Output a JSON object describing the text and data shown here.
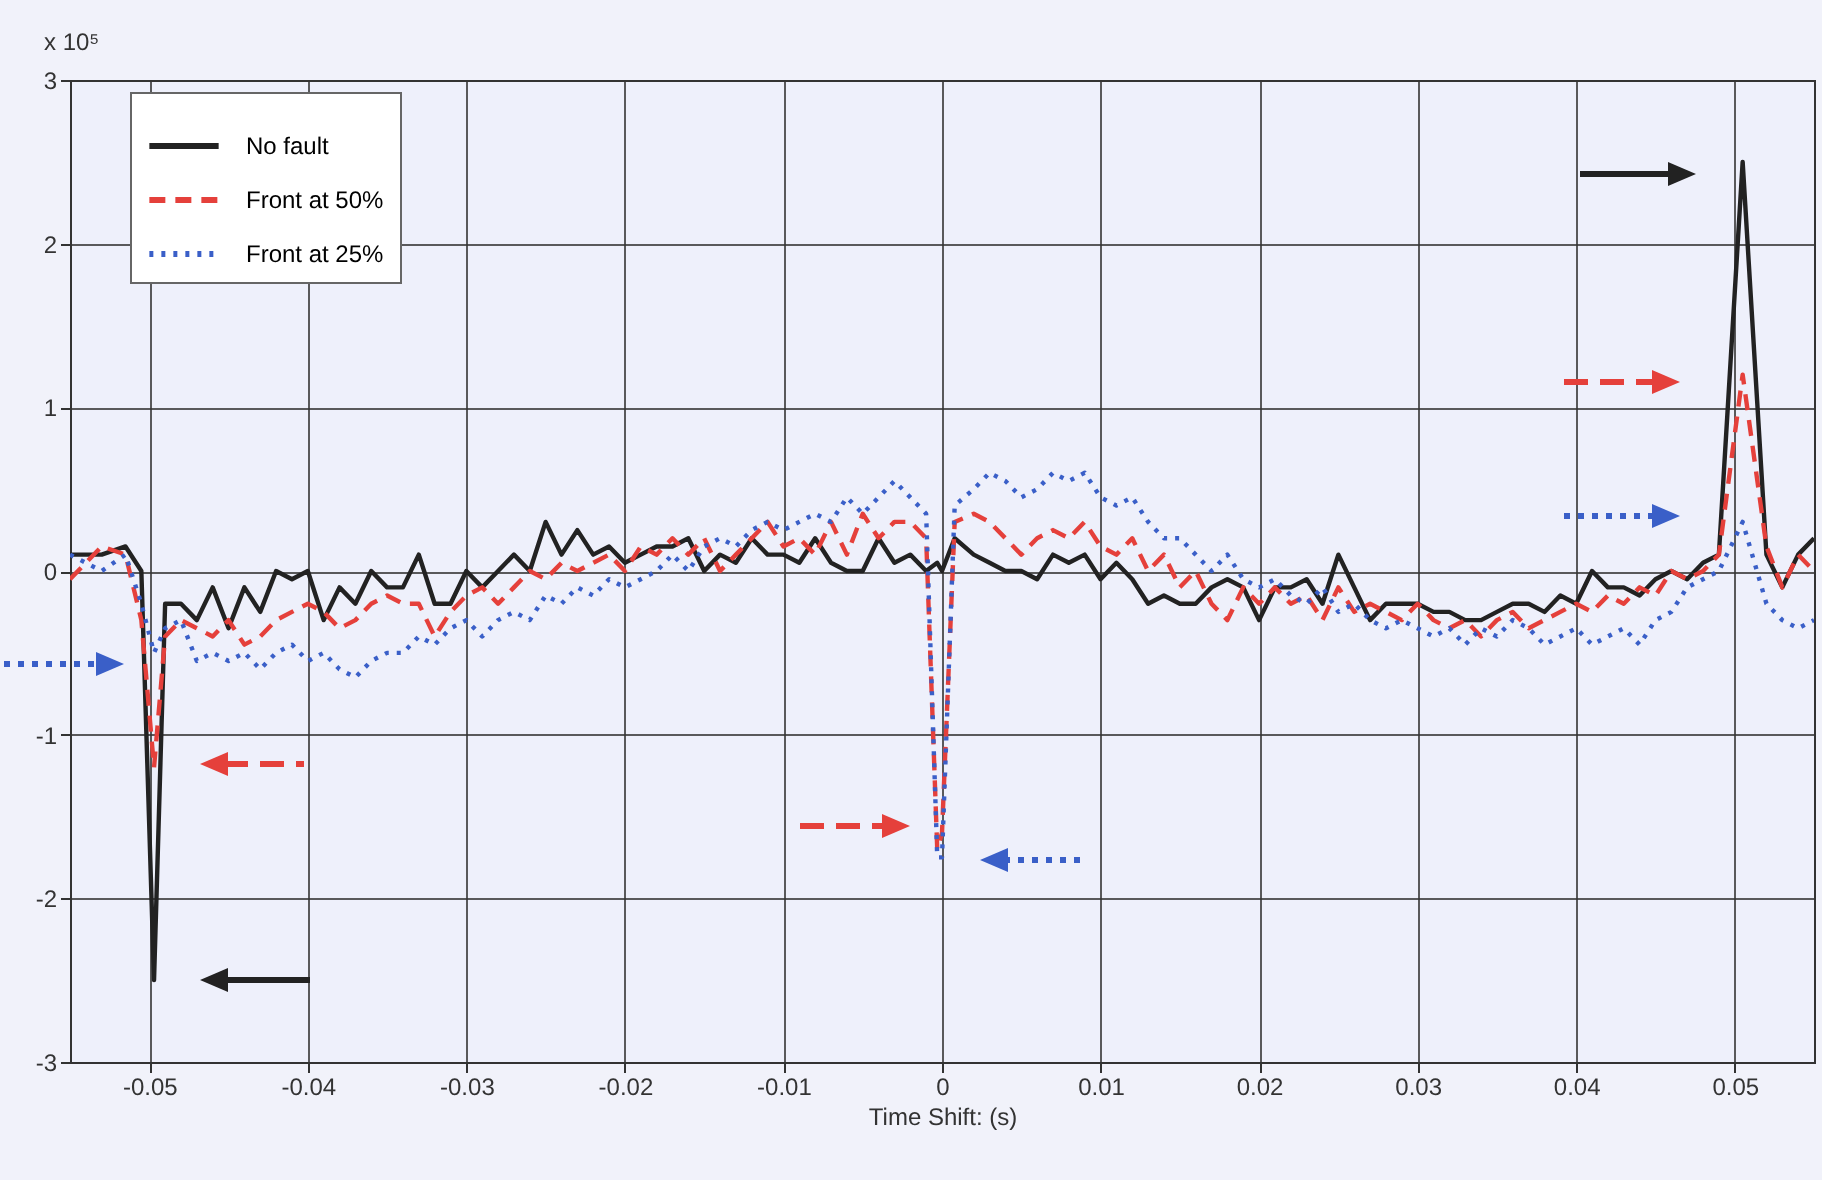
{
  "chart_data": {
    "type": "line",
    "xlabel": "Time Shift: (s)",
    "annotations": [
      "x 10⁵"
    ],
    "x": [
      -0.055,
      -0.053,
      -0.0515,
      -0.0505,
      -0.0497,
      -0.049,
      -0.048,
      -0.047,
      -0.046,
      -0.045,
      -0.044,
      -0.043,
      -0.042,
      -0.041,
      -0.04,
      -0.039,
      -0.038,
      -0.037,
      -0.036,
      -0.035,
      -0.034,
      -0.033,
      -0.032,
      -0.031,
      -0.03,
      -0.029,
      -0.028,
      -0.027,
      -0.026,
      -0.025,
      -0.024,
      -0.023,
      -0.022,
      -0.021,
      -0.02,
      -0.019,
      -0.018,
      -0.017,
      -0.016,
      -0.015,
      -0.014,
      -0.013,
      -0.012,
      -0.011,
      -0.01,
      -0.009,
      -0.008,
      -0.007,
      -0.006,
      -0.005,
      -0.004,
      -0.003,
      -0.002,
      -0.001,
      -0.0003,
      0,
      0.0008,
      0.002,
      0.003,
      0.004,
      0.005,
      0.006,
      0.007,
      0.008,
      0.009,
      0.01,
      0.011,
      0.012,
      0.013,
      0.014,
      0.015,
      0.016,
      0.017,
      0.018,
      0.019,
      0.02,
      0.021,
      0.022,
      0.023,
      0.024,
      0.025,
      0.026,
      0.027,
      0.028,
      0.029,
      0.03,
      0.031,
      0.032,
      0.033,
      0.034,
      0.035,
      0.036,
      0.037,
      0.038,
      0.039,
      0.04,
      0.041,
      0.042,
      0.043,
      0.044,
      0.045,
      0.046,
      0.047,
      0.048,
      0.049,
      0.0505,
      0.052,
      0.053,
      0.054,
      0.055
    ],
    "series": [
      {
        "name": "No fault",
        "color": "#222222",
        "line_style": "solid",
        "values": [
          0.1,
          0.1,
          0.15,
          0.0,
          -2.5,
          -0.2,
          -0.2,
          -0.3,
          -0.1,
          -0.35,
          -0.1,
          -0.25,
          0.0,
          -0.05,
          0.0,
          -0.3,
          -0.1,
          -0.2,
          0.0,
          -0.1,
          -0.1,
          0.1,
          -0.2,
          -0.2,
          0.0,
          -0.1,
          0.0,
          0.1,
          0.0,
          0.3,
          0.1,
          0.25,
          0.1,
          0.15,
          0.05,
          0.1,
          0.15,
          0.15,
          0.2,
          0.0,
          0.1,
          0.05,
          0.2,
          0.1,
          0.1,
          0.05,
          0.2,
          0.05,
          0.0,
          0.0,
          0.2,
          0.05,
          0.1,
          0.0,
          0.05,
          0.0,
          0.2,
          0.1,
          0.05,
          0.0,
          0.0,
          -0.05,
          0.1,
          0.05,
          0.1,
          -0.05,
          0.05,
          -0.05,
          -0.2,
          -0.15,
          -0.2,
          -0.2,
          -0.1,
          -0.05,
          -0.1,
          -0.3,
          -0.1,
          -0.1,
          -0.05,
          -0.2,
          0.1,
          -0.1,
          -0.3,
          -0.2,
          -0.2,
          -0.2,
          -0.25,
          -0.25,
          -0.3,
          -0.3,
          -0.25,
          -0.2,
          -0.2,
          -0.25,
          -0.15,
          -0.2,
          0.0,
          -0.1,
          -0.1,
          -0.15,
          -0.05,
          0.0,
          -0.05,
          0.05,
          0.1,
          2.5,
          0.1,
          -0.1,
          0.1,
          0.2
        ]
      },
      {
        "name": "Front at 50%",
        "color": "#e5403b",
        "line_style": "dashed",
        "values": [
          -0.05,
          0.15,
          0.1,
          -0.3,
          -1.2,
          -0.4,
          -0.3,
          -0.35,
          -0.4,
          -0.3,
          -0.45,
          -0.4,
          -0.3,
          -0.25,
          -0.2,
          -0.25,
          -0.35,
          -0.3,
          -0.2,
          -0.15,
          -0.2,
          -0.2,
          -0.4,
          -0.25,
          -0.15,
          -0.1,
          -0.2,
          -0.1,
          0.0,
          -0.05,
          0.05,
          0.0,
          0.05,
          0.1,
          0.0,
          0.15,
          0.1,
          0.2,
          0.1,
          0.2,
          0.0,
          0.1,
          0.2,
          0.3,
          0.15,
          0.2,
          0.1,
          0.3,
          0.1,
          0.35,
          0.2,
          0.3,
          0.3,
          0.2,
          -1.7,
          -1.6,
          0.3,
          0.35,
          0.3,
          0.2,
          0.1,
          0.2,
          0.25,
          0.2,
          0.3,
          0.15,
          0.1,
          0.2,
          0.0,
          0.1,
          -0.1,
          0.0,
          -0.2,
          -0.3,
          -0.1,
          -0.2,
          -0.1,
          -0.2,
          -0.15,
          -0.3,
          -0.1,
          -0.25,
          -0.2,
          -0.25,
          -0.3,
          -0.2,
          -0.3,
          -0.35,
          -0.3,
          -0.4,
          -0.3,
          -0.25,
          -0.35,
          -0.3,
          -0.25,
          -0.2,
          -0.25,
          -0.15,
          -0.2,
          -0.1,
          -0.15,
          0.0,
          -0.05,
          0.0,
          0.1,
          1.2,
          0.15,
          -0.1,
          0.1,
          0.0
        ]
      },
      {
        "name": "Front at 25%",
        "color": "#3a5fc8",
        "line_style": "dotted",
        "values": [
          0.1,
          0.0,
          0.1,
          -0.2,
          -0.5,
          -0.35,
          -0.3,
          -0.55,
          -0.5,
          -0.55,
          -0.5,
          -0.6,
          -0.5,
          -0.45,
          -0.55,
          -0.5,
          -0.6,
          -0.65,
          -0.55,
          -0.5,
          -0.5,
          -0.4,
          -0.45,
          -0.35,
          -0.3,
          -0.4,
          -0.3,
          -0.25,
          -0.3,
          -0.15,
          -0.2,
          -0.1,
          -0.15,
          -0.05,
          -0.1,
          -0.05,
          0.0,
          0.1,
          0.0,
          0.15,
          0.2,
          0.15,
          0.25,
          0.3,
          0.25,
          0.3,
          0.35,
          0.3,
          0.45,
          0.35,
          0.45,
          0.55,
          0.45,
          0.35,
          -1.75,
          -1.75,
          0.4,
          0.5,
          0.6,
          0.55,
          0.45,
          0.5,
          0.6,
          0.55,
          0.6,
          0.45,
          0.4,
          0.45,
          0.3,
          0.2,
          0.2,
          0.1,
          0.0,
          0.1,
          -0.05,
          -0.1,
          -0.05,
          -0.15,
          -0.2,
          -0.1,
          -0.25,
          -0.2,
          -0.3,
          -0.35,
          -0.3,
          -0.35,
          -0.4,
          -0.35,
          -0.45,
          -0.35,
          -0.4,
          -0.3,
          -0.35,
          -0.45,
          -0.4,
          -0.35,
          -0.45,
          -0.4,
          -0.35,
          -0.45,
          -0.3,
          -0.25,
          -0.1,
          -0.05,
          0.0,
          0.3,
          -0.2,
          -0.3,
          -0.35,
          -0.3
        ]
      }
    ],
    "xlim": [
      -0.055,
      0.055
    ],
    "xticks": [
      -0.05,
      -0.04,
      -0.03,
      -0.02,
      -0.01,
      0,
      0.01,
      0.02,
      0.03,
      0.04,
      0.05
    ],
    "ylim": [
      -3,
      3
    ],
    "yticks": [
      -3,
      -2,
      -1,
      0,
      1,
      2,
      3
    ],
    "grid": true,
    "legend": "top left"
  }
}
